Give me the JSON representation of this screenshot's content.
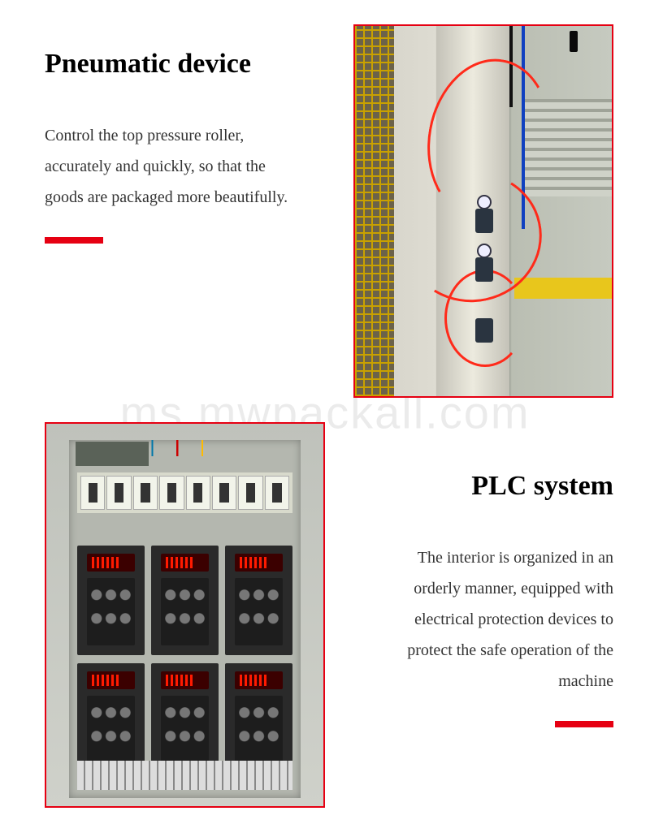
{
  "watermark": "ms.mwpackall.com",
  "accent_color": "#e60012",
  "sections": {
    "pneumatic": {
      "title": "Pneumatic device",
      "description": "Control the top pressure roller, accurately and quickly, so that the goods are packaged more beautifully.",
      "image_alt": "Pneumatic tubing and pressure regulators on machine frame"
    },
    "plc": {
      "title": "PLC system",
      "description": "The interior is organized in an orderly manner, equipped with electrical protection devices to protect the safe operation of the machine",
      "image_alt": "Electrical control cabinet with variable frequency drives and circuit breakers"
    }
  }
}
